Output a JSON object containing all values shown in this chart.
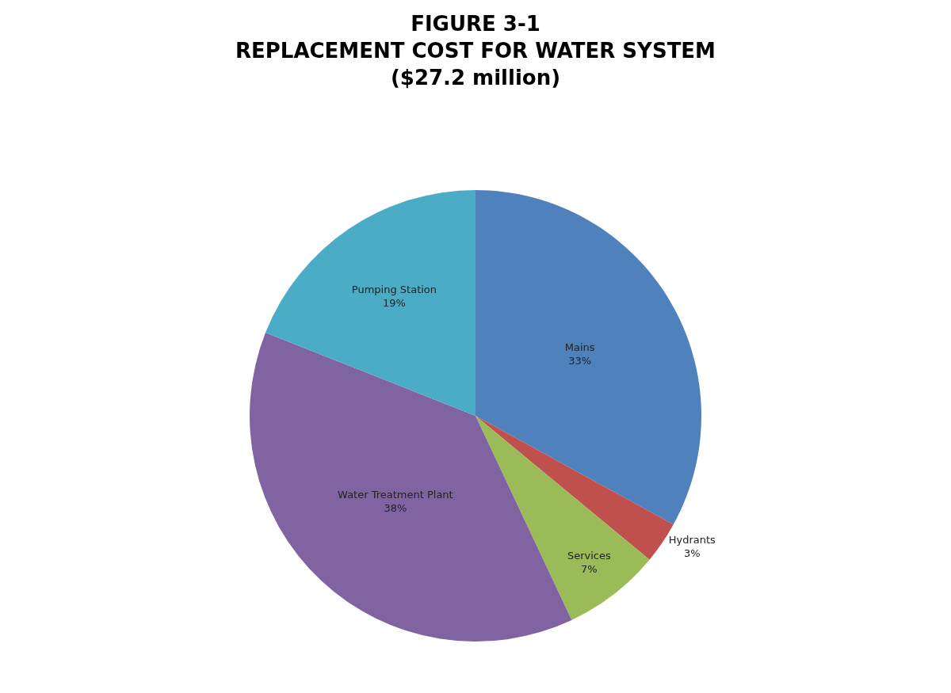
{
  "chart_data": {
    "type": "pie",
    "title": "FIGURE 3-1\nREPLACEMENT COST FOR WATER SYSTEM\n($27.2 million)",
    "categories": [
      "Mains",
      "Hydrants",
      "Services",
      "Water Treatment Plant",
      "Pumping Station"
    ],
    "values": [
      33,
      3,
      7,
      38,
      19
    ],
    "value_labels": [
      "33%",
      "3%",
      "7%",
      "38%",
      "19%"
    ],
    "colors": [
      "#4f81bd",
      "#c0504d",
      "#9bbb59",
      "#8064a2",
      "#4bacc6"
    ],
    "legend": false
  }
}
